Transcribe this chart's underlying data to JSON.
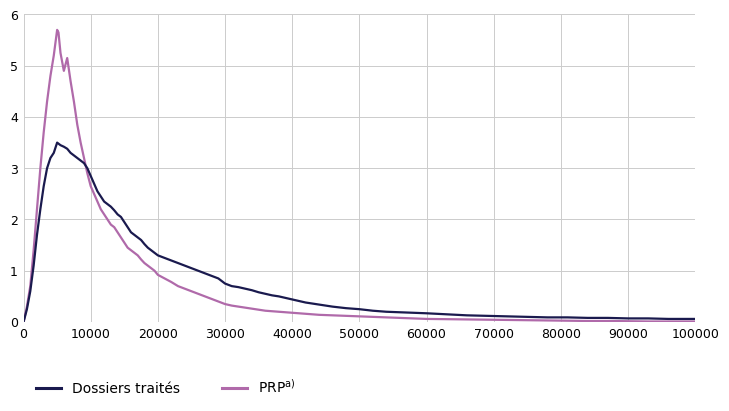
{
  "xlim": [
    0,
    100000
  ],
  "ylim": [
    0,
    6
  ],
  "yticks": [
    0,
    1,
    2,
    3,
    4,
    5,
    6
  ],
  "xticks": [
    0,
    10000,
    20000,
    30000,
    40000,
    50000,
    60000,
    70000,
    80000,
    90000,
    100000
  ],
  "xtick_labels": [
    "0",
    "10000",
    "20000",
    "30000",
    "40000",
    "50000",
    "60000",
    "70000",
    "80000",
    "90000",
    "100000"
  ],
  "ytick_labels": [
    "0",
    "1",
    "2",
    "3",
    "4",
    "5",
    "6"
  ],
  "line1_color": "#1a1a4e",
  "line2_color": "#b06aaa",
  "line1_label": "Dossiers traités",
  "line2_label": "PRP",
  "line2_superscript": "a)",
  "background_color": "#ffffff",
  "grid_color": "#cccccc",
  "line_width": 1.6,
  "dossiers_x": [
    0,
    500,
    1000,
    1500,
    2000,
    2500,
    3000,
    3500,
    4000,
    4500,
    5000,
    5500,
    6000,
    6500,
    7000,
    7500,
    8000,
    8500,
    9000,
    9500,
    10000,
    10500,
    11000,
    11500,
    12000,
    12500,
    13000,
    13500,
    14000,
    14500,
    15000,
    15500,
    16000,
    16500,
    17000,
    17500,
    18000,
    18500,
    19000,
    19500,
    20000,
    21000,
    22000,
    23000,
    24000,
    25000,
    26000,
    27000,
    28000,
    29000,
    30000,
    31000,
    32000,
    33000,
    34000,
    35000,
    36000,
    37000,
    38000,
    39000,
    40000,
    42000,
    44000,
    46000,
    48000,
    50000,
    52000,
    54000,
    56000,
    58000,
    60000,
    63000,
    66000,
    69000,
    72000,
    75000,
    78000,
    81000,
    84000,
    87000,
    90000,
    93000,
    96000,
    100000
  ],
  "dossiers_y": [
    0,
    0.25,
    0.6,
    1.1,
    1.7,
    2.2,
    2.65,
    3.0,
    3.2,
    3.3,
    3.5,
    3.45,
    3.42,
    3.38,
    3.3,
    3.25,
    3.2,
    3.15,
    3.1,
    3.0,
    2.85,
    2.7,
    2.55,
    2.45,
    2.35,
    2.3,
    2.25,
    2.18,
    2.1,
    2.05,
    1.95,
    1.85,
    1.75,
    1.7,
    1.65,
    1.6,
    1.52,
    1.45,
    1.4,
    1.35,
    1.3,
    1.25,
    1.2,
    1.15,
    1.1,
    1.05,
    1.0,
    0.95,
    0.9,
    0.85,
    0.75,
    0.7,
    0.68,
    0.65,
    0.62,
    0.58,
    0.55,
    0.52,
    0.5,
    0.47,
    0.44,
    0.38,
    0.34,
    0.3,
    0.27,
    0.25,
    0.22,
    0.2,
    0.19,
    0.18,
    0.17,
    0.15,
    0.13,
    0.12,
    0.11,
    0.1,
    0.09,
    0.09,
    0.08,
    0.08,
    0.07,
    0.07,
    0.06,
    0.06
  ],
  "prp_x": [
    0,
    500,
    1000,
    1500,
    2000,
    2500,
    3000,
    3500,
    4000,
    4500,
    5000,
    5200,
    5500,
    6000,
    6500,
    7000,
    7500,
    8000,
    8500,
    9000,
    9500,
    10000,
    10500,
    11000,
    11500,
    12000,
    12500,
    13000,
    13500,
    14000,
    14500,
    15000,
    15500,
    16000,
    16500,
    17000,
    17500,
    18000,
    18500,
    19000,
    19500,
    20000,
    21000,
    22000,
    23000,
    24000,
    25000,
    26000,
    27000,
    28000,
    29000,
    30000,
    31000,
    32000,
    33000,
    34000,
    35000,
    36000,
    37000,
    38000,
    39000,
    40000,
    42000,
    44000,
    46000,
    48000,
    50000,
    52000,
    54000,
    56000,
    58000,
    60000,
    63000,
    66000,
    69000,
    72000,
    75000,
    78000,
    81000,
    84000,
    87000,
    90000,
    93000,
    96000,
    100000
  ],
  "prp_y": [
    0,
    0.3,
    0.7,
    1.4,
    2.2,
    3.0,
    3.7,
    4.3,
    4.8,
    5.2,
    5.7,
    5.65,
    5.25,
    4.9,
    5.15,
    4.7,
    4.3,
    3.85,
    3.5,
    3.2,
    2.9,
    2.65,
    2.5,
    2.35,
    2.2,
    2.1,
    2.0,
    1.9,
    1.85,
    1.75,
    1.65,
    1.55,
    1.45,
    1.4,
    1.35,
    1.3,
    1.22,
    1.15,
    1.1,
    1.05,
    1.0,
    0.92,
    0.85,
    0.78,
    0.7,
    0.65,
    0.6,
    0.55,
    0.5,
    0.45,
    0.4,
    0.35,
    0.32,
    0.3,
    0.28,
    0.26,
    0.24,
    0.22,
    0.21,
    0.2,
    0.19,
    0.18,
    0.16,
    0.14,
    0.13,
    0.12,
    0.11,
    0.1,
    0.09,
    0.08,
    0.07,
    0.06,
    0.055,
    0.05,
    0.045,
    0.04,
    0.035,
    0.03,
    0.025,
    0.02,
    0.02,
    0.015,
    0.01,
    0.01,
    0.01
  ]
}
